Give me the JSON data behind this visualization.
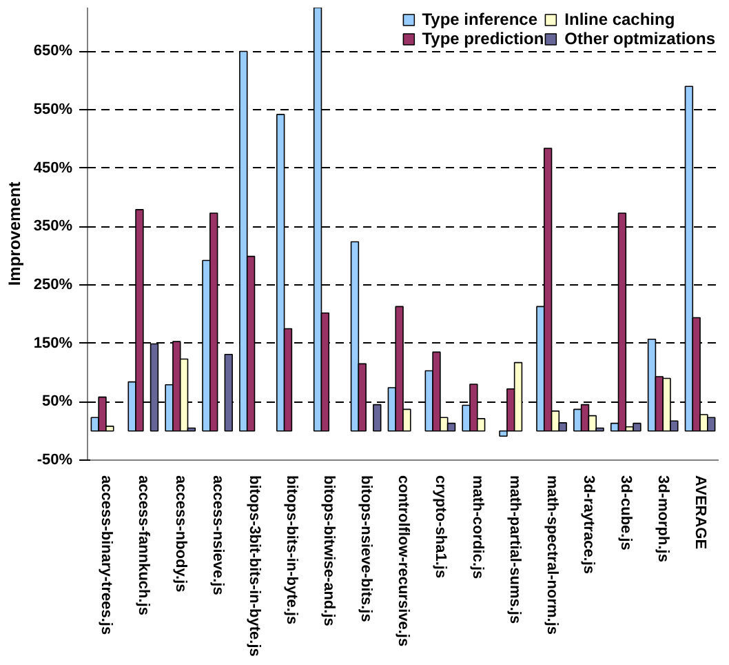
{
  "chart_data": {
    "type": "bar",
    "ylabel": "Improvement",
    "categories": [
      "access-binary-trees.js",
      "access-fannkuch.js",
      "access-nbody.js",
      "access-nsieve.js",
      "bitops-3bit-bits-in-byte.js",
      "bitops-bits-in-byte.js",
      "bitops-bitwise-and.js",
      "bitops-nsieve-bits.js",
      "controlflow-recursive.js",
      "crypto-sha1.js",
      "math-cordic.js",
      "math-partial-sums.js",
      "math-spectral-norm.js",
      "3d-raytrace.js",
      "3d-cube.js",
      "3d-morph.js",
      "AVERAGE"
    ],
    "series": [
      {
        "name": "Type inference",
        "color": "#99ccff",
        "values": [
          23,
          84,
          79,
          292,
          650,
          542,
          725,
          324,
          74,
          103,
          44,
          -9,
          213,
          37,
          13,
          157,
          590
        ]
      },
      {
        "name": "Type prediction",
        "color": "#993366",
        "values": [
          58,
          379,
          153,
          373,
          299,
          175,
          202,
          115,
          213,
          135,
          80,
          72,
          484,
          45,
          373,
          93,
          194
        ]
      },
      {
        "name": "Inline caching",
        "color": "#ffffcc",
        "values": [
          8,
          null,
          123,
          null,
          null,
          null,
          null,
          null,
          37,
          23,
          21,
          117,
          34,
          26,
          7,
          90,
          28
        ]
      },
      {
        "name": "Other optmizations",
        "color": "#666699",
        "values": [
          null,
          149,
          5,
          131,
          null,
          null,
          null,
          45,
          null,
          13,
          null,
          null,
          14,
          5,
          13,
          17,
          23
        ]
      }
    ],
    "ylim": [
      -50,
      725
    ],
    "yticks": [
      {
        "value": -50,
        "label": "-50%"
      },
      {
        "value": 50,
        "label": "50%"
      },
      {
        "value": 150,
        "label": "150%"
      },
      {
        "value": 250,
        "label": "250%"
      },
      {
        "value": 350,
        "label": "350%"
      },
      {
        "value": 450,
        "label": "450%"
      },
      {
        "value": 550,
        "label": "550%"
      },
      {
        "value": 650,
        "label": "650%"
      }
    ],
    "grid": "y",
    "legend": "top"
  }
}
